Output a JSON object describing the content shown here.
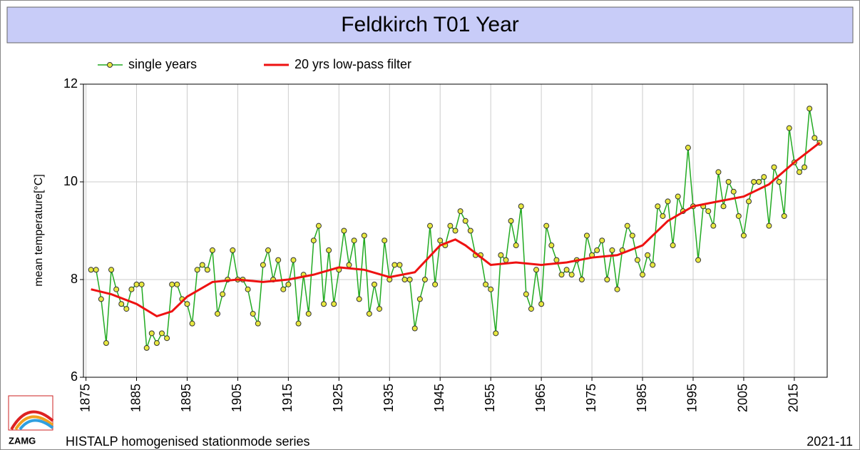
{
  "chart_data": {
    "type": "line",
    "title": "Feldkirch T01 Year",
    "ylabel": "mean temperature[°C]",
    "footer_left": "HISTALP homogenised stationmode series",
    "footer_right": "2021-11",
    "logo": "ZAMG",
    "x": [
      1876,
      1877,
      1878,
      1879,
      1880,
      1881,
      1882,
      1883,
      1884,
      1885,
      1886,
      1887,
      1888,
      1889,
      1890,
      1891,
      1892,
      1893,
      1894,
      1895,
      1896,
      1897,
      1898,
      1899,
      1900,
      1901,
      1902,
      1903,
      1904,
      1905,
      1906,
      1907,
      1908,
      1909,
      1910,
      1911,
      1912,
      1913,
      1914,
      1915,
      1916,
      1917,
      1918,
      1919,
      1920,
      1921,
      1922,
      1923,
      1924,
      1925,
      1926,
      1927,
      1928,
      1929,
      1930,
      1931,
      1932,
      1933,
      1934,
      1935,
      1936,
      1937,
      1938,
      1939,
      1940,
      1941,
      1942,
      1943,
      1944,
      1945,
      1946,
      1947,
      1948,
      1949,
      1950,
      1951,
      1952,
      1953,
      1954,
      1955,
      1956,
      1957,
      1958,
      1959,
      1960,
      1961,
      1962,
      1963,
      1964,
      1965,
      1966,
      1967,
      1968,
      1969,
      1970,
      1971,
      1972,
      1973,
      1974,
      1975,
      1976,
      1977,
      1978,
      1979,
      1980,
      1981,
      1982,
      1983,
      1984,
      1985,
      1986,
      1987,
      1988,
      1989,
      1990,
      1991,
      1992,
      1993,
      1994,
      1995,
      1996,
      1997,
      1998,
      1999,
      2000,
      2001,
      2002,
      2003,
      2004,
      2005,
      2006,
      2007,
      2008,
      2009,
      2010,
      2011,
      2012,
      2013,
      2014,
      2015,
      2016,
      2017,
      2018,
      2019,
      2020
    ],
    "series": [
      {
        "name": "single years",
        "color": "#22aa22",
        "marker_color": "#e8e840",
        "values": [
          8.2,
          8.2,
          7.6,
          6.7,
          8.2,
          7.8,
          7.5,
          7.4,
          7.8,
          7.9,
          7.9,
          6.6,
          6.9,
          6.7,
          6.9,
          6.8,
          7.9,
          7.9,
          7.6,
          7.5,
          7.1,
          8.2,
          8.3,
          8.2,
          8.6,
          7.3,
          7.7,
          8.0,
          8.6,
          8.0,
          8.0,
          7.8,
          7.3,
          7.1,
          8.3,
          8.6,
          8.0,
          8.4,
          7.8,
          7.9,
          8.4,
          7.1,
          8.1,
          7.3,
          8.8,
          9.1,
          7.5,
          8.6,
          7.5,
          8.2,
          9.0,
          8.3,
          8.8,
          7.6,
          8.9,
          7.3,
          7.9,
          7.4,
          8.8,
          8.0,
          8.3,
          8.3,
          8.0,
          8.0,
          7.0,
          7.6,
          8.0,
          9.1,
          7.9,
          8.8,
          8.7,
          9.1,
          9.0,
          9.4,
          9.2,
          9.0,
          8.5,
          8.5,
          7.9,
          7.8,
          6.9,
          8.5,
          8.4,
          9.2,
          8.7,
          9.5,
          7.7,
          7.4,
          8.2,
          7.5,
          9.1,
          8.7,
          8.4,
          8.1,
          8.2,
          8.1,
          8.4,
          8.0,
          8.9,
          8.5,
          8.6,
          8.8,
          8.0,
          8.6,
          7.8,
          8.6,
          9.1,
          8.9,
          8.4,
          8.1,
          8.5,
          8.3,
          9.5,
          9.3,
          9.6,
          8.7,
          9.7,
          9.4,
          10.7,
          9.5,
          8.4,
          9.5,
          9.4,
          9.1,
          10.2,
          9.5,
          10.0,
          9.8,
          9.3,
          8.9,
          9.6,
          10.0,
          10.0,
          10.1,
          9.1,
          10.3,
          10.0,
          9.3,
          11.1,
          10.4,
          10.2,
          10.3,
          11.5,
          10.9,
          10.8
        ]
      },
      {
        "name": "20 yrs low-pass filter",
        "color": "#ee1111",
        "x": [
          1876,
          1880,
          1885,
          1889,
          1892,
          1895,
          1900,
          1905,
          1910,
          1915,
          1920,
          1925,
          1930,
          1935,
          1940,
          1945,
          1948,
          1950,
          1955,
          1960,
          1965,
          1970,
          1975,
          1980,
          1985,
          1990,
          1995,
          2000,
          2005,
          2010,
          2015,
          2020
        ],
        "values": [
          7.8,
          7.7,
          7.5,
          7.25,
          7.35,
          7.65,
          7.95,
          8.0,
          7.95,
          8.0,
          8.1,
          8.25,
          8.2,
          8.05,
          8.15,
          8.7,
          8.82,
          8.7,
          8.3,
          8.35,
          8.3,
          8.35,
          8.45,
          8.5,
          8.7,
          9.2,
          9.5,
          9.6,
          9.7,
          9.95,
          10.4,
          10.8
        ]
      }
    ],
    "xlim": [
      1874.5,
      2021.5
    ],
    "xticks": [
      1875,
      1885,
      1895,
      1905,
      1915,
      1925,
      1935,
      1945,
      1955,
      1965,
      1975,
      1985,
      1995,
      2005,
      2015
    ],
    "ylim": [
      6,
      12
    ],
    "yticks": [
      6,
      8,
      10,
      12
    ],
    "grid": true
  }
}
